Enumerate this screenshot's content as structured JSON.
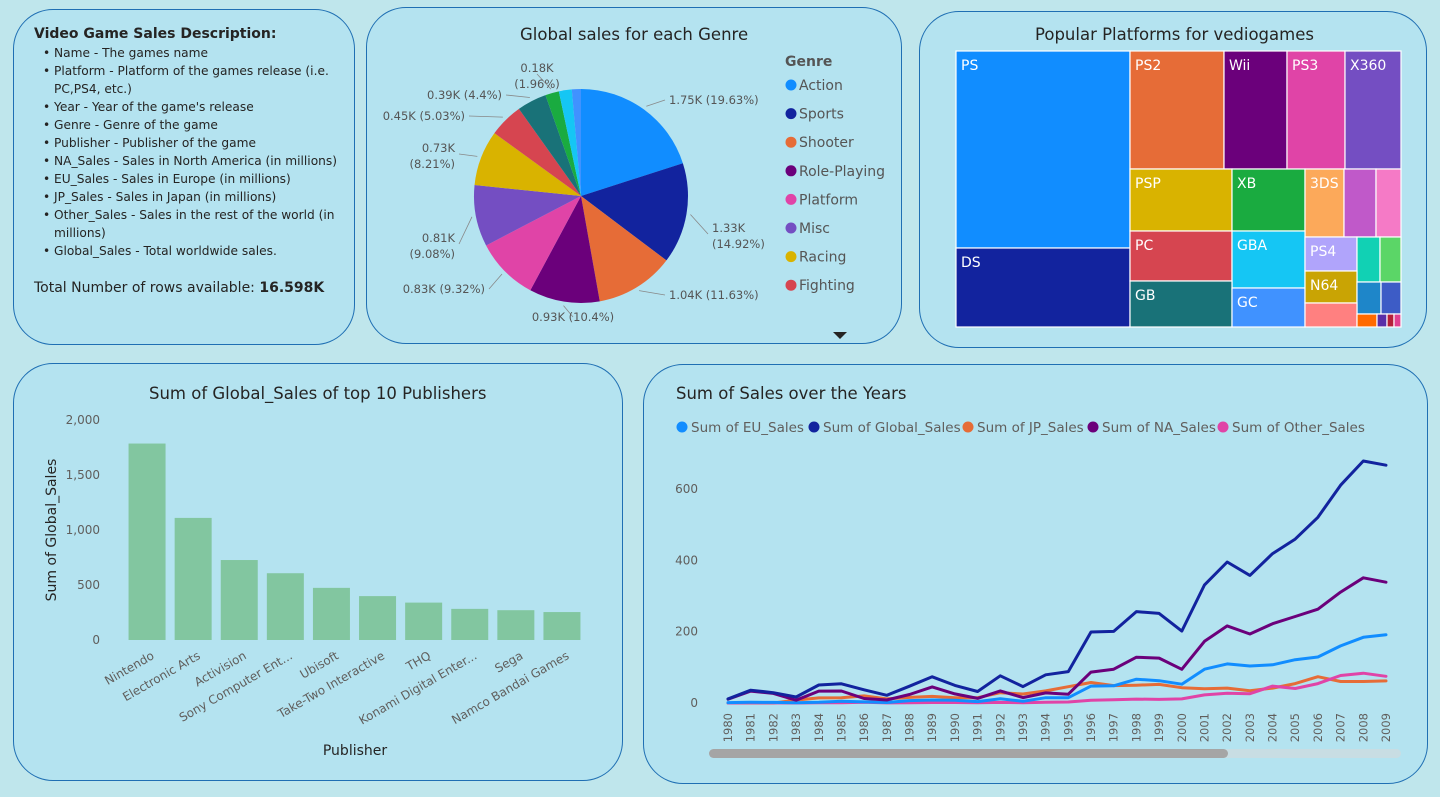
{
  "description": {
    "title": "Video Game Sales Description:",
    "items": [
      "Name - The games name",
      "Platform - Platform of the games release (i.e. PC,PS4, etc.)",
      "Year - Year of the game's release",
      "Genre - Genre of the game",
      "Publisher - Publisher of the game",
      "NA_Sales - Sales in North America (in millions)",
      "EU_Sales - Sales in Europe (in millions)",
      "JP_Sales - Sales in Japan (in millions)",
      "Other_Sales - Sales in the rest of the world (in millions)",
      "Global_Sales - Total worldwide sales."
    ],
    "total_label": "Total Number of rows available:",
    "total_value": "16.598K"
  },
  "colors": {
    "action": "#118dff",
    "sports": "#12239e",
    "shooter": "#e66c37",
    "roleplaying": "#6b007b",
    "platform": "#e044a7",
    "misc": "#744ec2",
    "racing": "#d9b300",
    "fighting": "#d64550",
    "c9": "#197278",
    "c10": "#1aab40",
    "c11": "#15c6f4",
    "c12": "#4092ff",
    "bar": "#82c6a0"
  },
  "chart_data": [
    {
      "type": "pie",
      "title": "Global sales for each Genre",
      "legend_title": "Genre",
      "legend_position": "right",
      "series": [
        {
          "name": "Action",
          "value": 1.75,
          "label": "1.75K (19.63%)"
        },
        {
          "name": "Sports",
          "value": 1.33,
          "label": "1.33K (14.92%)"
        },
        {
          "name": "Shooter",
          "value": 1.04,
          "label": "1.04K (11.63%)"
        },
        {
          "name": "Role-Playing",
          "value": 0.93,
          "label": "0.93K (10.4%)"
        },
        {
          "name": "Platform",
          "value": 0.83,
          "label": "0.83K (9.32%)"
        },
        {
          "name": "Misc",
          "value": 0.81,
          "label": "0.81K (9.08%)"
        },
        {
          "name": "Racing",
          "value": 0.73,
          "label": "0.73K (8.21%)"
        },
        {
          "name": "Fighting",
          "value": 0.45,
          "label": "0.45K (5.03%)"
        },
        {
          "name": "",
          "value": 0.39,
          "label": "0.39K (4.4%)"
        },
        {
          "name": "",
          "value": 0.18,
          "label": "0.18K (1.96%)"
        },
        {
          "name": "",
          "value": 0.17,
          "label": ""
        },
        {
          "name": "",
          "value": 0.12,
          "label": ""
        }
      ]
    },
    {
      "type": "treemap",
      "title": "Popular Platforms for vediogames",
      "items": [
        {
          "name": "PS",
          "label": "PS",
          "color": "#118dff"
        },
        {
          "name": "DS",
          "label": "DS",
          "color": "#12239e"
        },
        {
          "name": "PS2",
          "label": "PS2",
          "color": "#e66c37"
        },
        {
          "name": "Wii",
          "label": "Wii",
          "color": "#6b007b"
        },
        {
          "name": "PS3",
          "label": "PS3",
          "color": "#e044a7"
        },
        {
          "name": "X360",
          "label": "X360",
          "color": "#744ec2"
        },
        {
          "name": "PSP",
          "label": "PSP",
          "color": "#d9b300"
        },
        {
          "name": "XB",
          "label": "XB",
          "color": "#1aab40"
        },
        {
          "name": "3DS",
          "label": "3DS",
          "color": "#fca95a"
        },
        {
          "name": "",
          "label": "",
          "color": "#c059c9"
        },
        {
          "name": "",
          "label": "",
          "color": "#f57ac6"
        },
        {
          "name": "PC",
          "label": "PC",
          "color": "#d64550"
        },
        {
          "name": "GBA",
          "label": "GBA",
          "color": "#15c6f4"
        },
        {
          "name": "PS4",
          "label": "PS4",
          "color": "#b0a4fb"
        },
        {
          "name": "",
          "label": "",
          "color": "#11d1b4"
        },
        {
          "name": "",
          "label": "",
          "color": "#5bd667"
        },
        {
          "name": "GB",
          "label": "GB",
          "color": "#197278"
        },
        {
          "name": "GC",
          "label": "GC",
          "color": "#4092ff"
        },
        {
          "name": "N64",
          "label": "N64",
          "color": "#c9a404"
        },
        {
          "name": "",
          "label": "",
          "color": "#1e86c9"
        },
        {
          "name": "",
          "label": "",
          "color": "#3d5cc6"
        },
        {
          "name": "",
          "label": "",
          "color": "#ff8080"
        },
        {
          "name": "",
          "label": "",
          "color": "#ff6a00"
        },
        {
          "name": "",
          "label": "",
          "color": "#5a2fa8"
        },
        {
          "name": "",
          "label": "",
          "color": "#b51f3a"
        },
        {
          "name": "",
          "label": "",
          "color": "#e04090"
        }
      ]
    },
    {
      "type": "bar",
      "title": "Sum of Global_Sales of top 10 Publishers",
      "xlabel": "Publisher",
      "ylabel": "Sum of Global_Sales",
      "ylim": [
        0,
        2000
      ],
      "yticks": [
        0,
        500,
        1000,
        1500,
        2000
      ],
      "ytick_labels": [
        "0",
        "500",
        "1,000",
        "1,500",
        "2,000"
      ],
      "categories": [
        "Nintendo",
        "Electronic Arts",
        "Activision",
        "Sony Computer Ent...",
        "Ubisoft",
        "Take-Two Interactive",
        "THQ",
        "Konami Digital Enter...",
        "Sega",
        "Namco Bandai Games"
      ],
      "values": [
        1786,
        1110,
        727,
        607,
        474,
        399,
        340,
        283,
        271,
        254
      ]
    },
    {
      "type": "line",
      "title": "Sum of Sales over the Years",
      "legend_position": "top",
      "ylim": [
        0,
        700
      ],
      "yticks": [
        0,
        200,
        400,
        600
      ],
      "x": [
        "1980",
        "1981",
        "1982",
        "1983",
        "1984",
        "1985",
        "1986",
        "1987",
        "1988",
        "1989",
        "1990",
        "1991",
        "1992",
        "1993",
        "1994",
        "1995",
        "1996",
        "1997",
        "1998",
        "1999",
        "2000",
        "2001",
        "2002",
        "2003",
        "2004",
        "2005",
        "2006",
        "2007",
        "2008",
        "2009"
      ],
      "series": [
        {
          "name": "Sum of EU_Sales",
          "color": "#118dff",
          "values": [
            1.0,
            1.9,
            1.6,
            0.8,
            2.1,
            4.7,
            3.0,
            1.4,
            6.6,
            8.4,
            7.6,
            4.0,
            11.7,
            4.7,
            14.9,
            14.9,
            47.3,
            48.3,
            66.9,
            62.7,
            52.8,
            94.9,
            109.7,
            103.8,
            107.3,
            121.6,
            129.2,
            160.2,
            184.4,
            191.6
          ]
        },
        {
          "name": "Sum of Global_Sales",
          "color": "#12239e",
          "values": [
            11.4,
            35.8,
            28.9,
            16.8,
            50.4,
            53.9,
            37.1,
            21.7,
            47.2,
            73.5,
            49.4,
            32.2,
            76.2,
            45.9,
            79.2,
            88.1,
            199.2,
            200.9,
            256.5,
            251.3,
            201.6,
            331.5,
            395.5,
            357.9,
            419.3,
            459.9,
            521.0,
            611.1,
            678.9,
            667.3
          ]
        },
        {
          "name": "Sum of JP_Sales",
          "color": "#e66c37",
          "values": [
            0.0,
            0.0,
            0.0,
            8.1,
            14.3,
            14.6,
            19.8,
            11.6,
            15.8,
            18.4,
            14.9,
            14.8,
            28.9,
            25.3,
            33.9,
            45.8,
            57.4,
            48.9,
            50.0,
            52.3,
            42.8,
            39.9,
            41.8,
            34.2,
            41.7,
            54.3,
            73.7,
            60.3,
            60.3,
            61.9
          ]
        },
        {
          "name": "Sum of NA_Sales",
          "color": "#6b007b",
          "values": [
            10.6,
            33.4,
            26.9,
            7.8,
            33.3,
            33.7,
            12.5,
            8.5,
            23.9,
            45.2,
            25.5,
            12.8,
            33.9,
            15.1,
            28.2,
            24.8,
            86.8,
            94.8,
            128.4,
            126.1,
            94.5,
            173.1,
            216.2,
            193.6,
            222.4,
            242.6,
            263.1,
            311.2,
            351.4,
            338.9
          ]
        },
        {
          "name": "Sum of Other_Sales",
          "color": "#e044a7",
          "values": [
            0.1,
            0.3,
            0.3,
            0.1,
            0.7,
            0.9,
            1.9,
            0.2,
            0.9,
            1.5,
            1.4,
            0.7,
            1.7,
            0.9,
            2.2,
            2.7,
            7.8,
            9.1,
            11.0,
            10.1,
            11.6,
            22.7,
            27.3,
            26.0,
            47.3,
            40.6,
            54.4,
            77.2,
            83.6,
            75.0
          ]
        }
      ]
    }
  ]
}
